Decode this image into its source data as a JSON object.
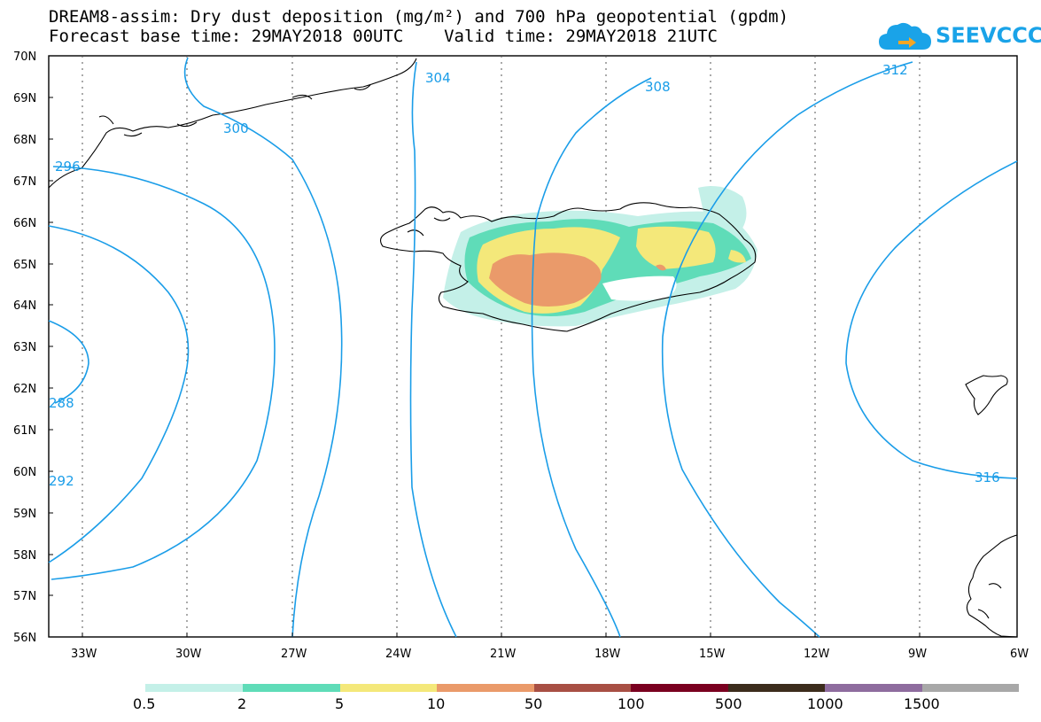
{
  "header": {
    "title_line1": "DREAM8-assim: Dry dust deposition (mg/m²) and 700 hPa geopotential (gpdm)",
    "title_line2": "Forecast base time: 29MAY2018 00UTC    Valid time: 29MAY2018 21UTC"
  },
  "logo": {
    "text": "SEEVCCC",
    "icon": "cloud-icon",
    "color": "#1aa3e8"
  },
  "map": {
    "lat_labels": [
      "70N",
      "69N",
      "68N",
      "67N",
      "66N",
      "65N",
      "64N",
      "63N",
      "62N",
      "61N",
      "60N",
      "59N",
      "58N",
      "57N",
      "56N"
    ],
    "lon_labels": [
      "33W",
      "30W",
      "27W",
      "24W",
      "21W",
      "18W",
      "15W",
      "12W",
      "9W",
      "6W"
    ],
    "contour_color": "#1a9de8",
    "contour_labels": [
      "304",
      "308",
      "312",
      "300",
      "296",
      "288",
      "292",
      "316"
    ]
  },
  "legend": {
    "labels": [
      "0.5",
      "2",
      "5",
      "10",
      "50",
      "100",
      "500",
      "1000",
      "1500"
    ],
    "colors": [
      "#c4f0e8",
      "#5fdcb8",
      "#f4e87a",
      "#ea9a6a",
      "#a84f44",
      "#7a0020",
      "#3c2c1c",
      "#8e6c9e",
      "#a8a8a8"
    ]
  }
}
